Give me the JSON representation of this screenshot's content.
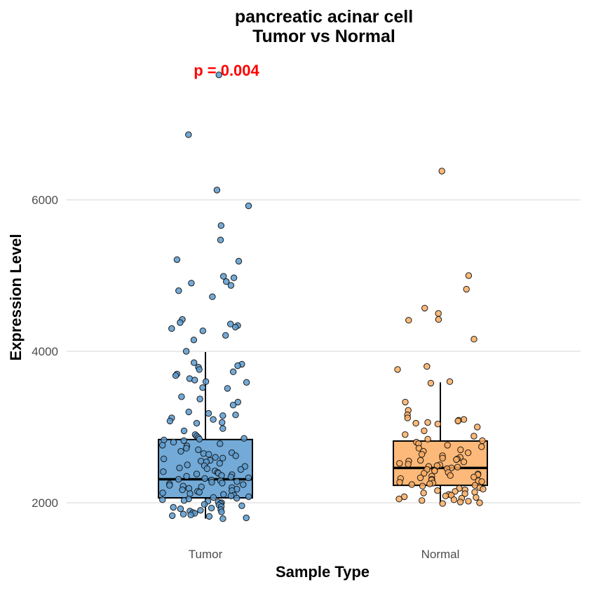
{
  "chart_data": {
    "type": "box",
    "title": "pancreatic acinar cell",
    "subtitle": "Tumor vs Normal",
    "xlabel": "Sample Type",
    "ylabel": "Expression Level",
    "categories": [
      "Tumor",
      "Normal"
    ],
    "yticks": [
      2000,
      4000,
      6000
    ],
    "ylim": [
      1500,
      7800
    ],
    "annotation": "p = 0.004",
    "grid": true,
    "legend": "none",
    "colors": {
      "Tumor": "#5b9bd0",
      "Normal": "#fdad62"
    },
    "series": [
      {
        "category": "Tumor",
        "min": 1790,
        "q1": 2065,
        "median": 2310,
        "q3": 2835,
        "max": 3990,
        "points": [
          7650,
          6860,
          6130,
          5920,
          5660,
          5470,
          5210,
          5190,
          4990,
          4970,
          4920,
          4900,
          4870,
          4800,
          4720,
          4420,
          4380,
          4360,
          4340,
          4320,
          4300,
          4270,
          4210,
          4150,
          4000,
          3850,
          3830,
          3810,
          3790,
          3760,
          3730,
          3700,
          3680,
          3640,
          3620,
          3600,
          3590,
          3520,
          3510,
          3400,
          3370,
          3330,
          3290,
          3200,
          3180,
          3160,
          3150,
          3120,
          3100,
          3080,
          3060,
          3050,
          2980,
          2950,
          2900,
          2880,
          2860,
          2850,
          2840,
          2830,
          2820,
          2800,
          2780,
          2760,
          2750,
          2720,
          2700,
          2680,
          2660,
          2650,
          2640,
          2620,
          2600,
          2590,
          2580,
          2560,
          2550,
          2540,
          2520,
          2500,
          2490,
          2480,
          2460,
          2450,
          2440,
          2420,
          2410,
          2400,
          2390,
          2380,
          2370,
          2360,
          2350,
          2340,
          2330,
          2320,
          2310,
          2300,
          2290,
          2280,
          2270,
          2260,
          2250,
          2240,
          2230,
          2220,
          2210,
          2200,
          2190,
          2180,
          2170,
          2160,
          2150,
          2140,
          2130,
          2120,
          2110,
          2100,
          2090,
          2080,
          2070,
          2060,
          2050,
          2040,
          2030,
          2020,
          2010,
          2000,
          1990,
          1980,
          1970,
          1960,
          1950,
          1940,
          1930,
          1920,
          1910,
          1900,
          1890,
          1880,
          1870,
          1860,
          1850,
          1840,
          1830,
          1820,
          1800,
          1790
        ]
      },
      {
        "category": "Normal",
        "min": 2000,
        "q1": 2230,
        "median": 2460,
        "q3": 2815,
        "max": 3590,
        "points": [
          6380,
          5000,
          4820,
          4570,
          4500,
          4420,
          4410,
          4160,
          3800,
          3760,
          3600,
          3580,
          3330,
          3220,
          3160,
          3120,
          3100,
          3090,
          3080,
          3060,
          3050,
          3040,
          3000,
          2950,
          2900,
          2880,
          2840,
          2820,
          2800,
          2780,
          2760,
          2740,
          2720,
          2700,
          2680,
          2660,
          2640,
          2620,
          2600,
          2590,
          2580,
          2570,
          2560,
          2550,
          2540,
          2520,
          2510,
          2500,
          2490,
          2480,
          2470,
          2460,
          2450,
          2440,
          2430,
          2420,
          2400,
          2390,
          2380,
          2370,
          2360,
          2350,
          2340,
          2330,
          2320,
          2310,
          2300,
          2290,
          2280,
          2270,
          2260,
          2250,
          2240,
          2230,
          2220,
          2200,
          2190,
          2180,
          2170,
          2160,
          2150,
          2140,
          2130,
          2120,
          2110,
          2100,
          2090,
          2080,
          2070,
          2060,
          2050,
          2040,
          2030,
          2020,
          2010,
          2000,
          1990
        ]
      }
    ]
  }
}
